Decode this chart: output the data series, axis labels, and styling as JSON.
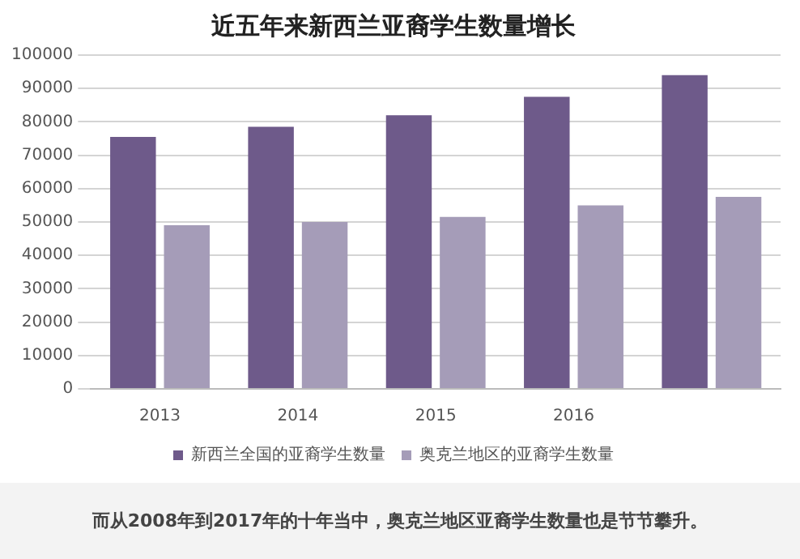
{
  "chart_data": {
    "type": "bar",
    "title": "近五年来新西兰亚裔学生数量增长",
    "categories": [
      "2013",
      "2014",
      "2015",
      "2016",
      null
    ],
    "series": [
      {
        "name": "新西兰全国的亚裔学生数量",
        "color": "#6e5a8a",
        "values": [
          75500,
          78500,
          82000,
          87500,
          94000
        ]
      },
      {
        "name": "奥克兰地区的亚裔学生数量",
        "color": "#a59cb8",
        "values": [
          49000,
          50000,
          51500,
          55000,
          57500
        ]
      }
    ],
    "ylim": [
      0,
      100000
    ],
    "yticks": [
      0,
      10000,
      20000,
      30000,
      40000,
      50000,
      60000,
      70000,
      80000,
      90000,
      100000
    ],
    "grid": "y",
    "legend": "bottom",
    "annotations": [
      "而从2008年到2017年的十年当中，奥克兰地区亚裔学生数量也是节节攀升。"
    ]
  }
}
